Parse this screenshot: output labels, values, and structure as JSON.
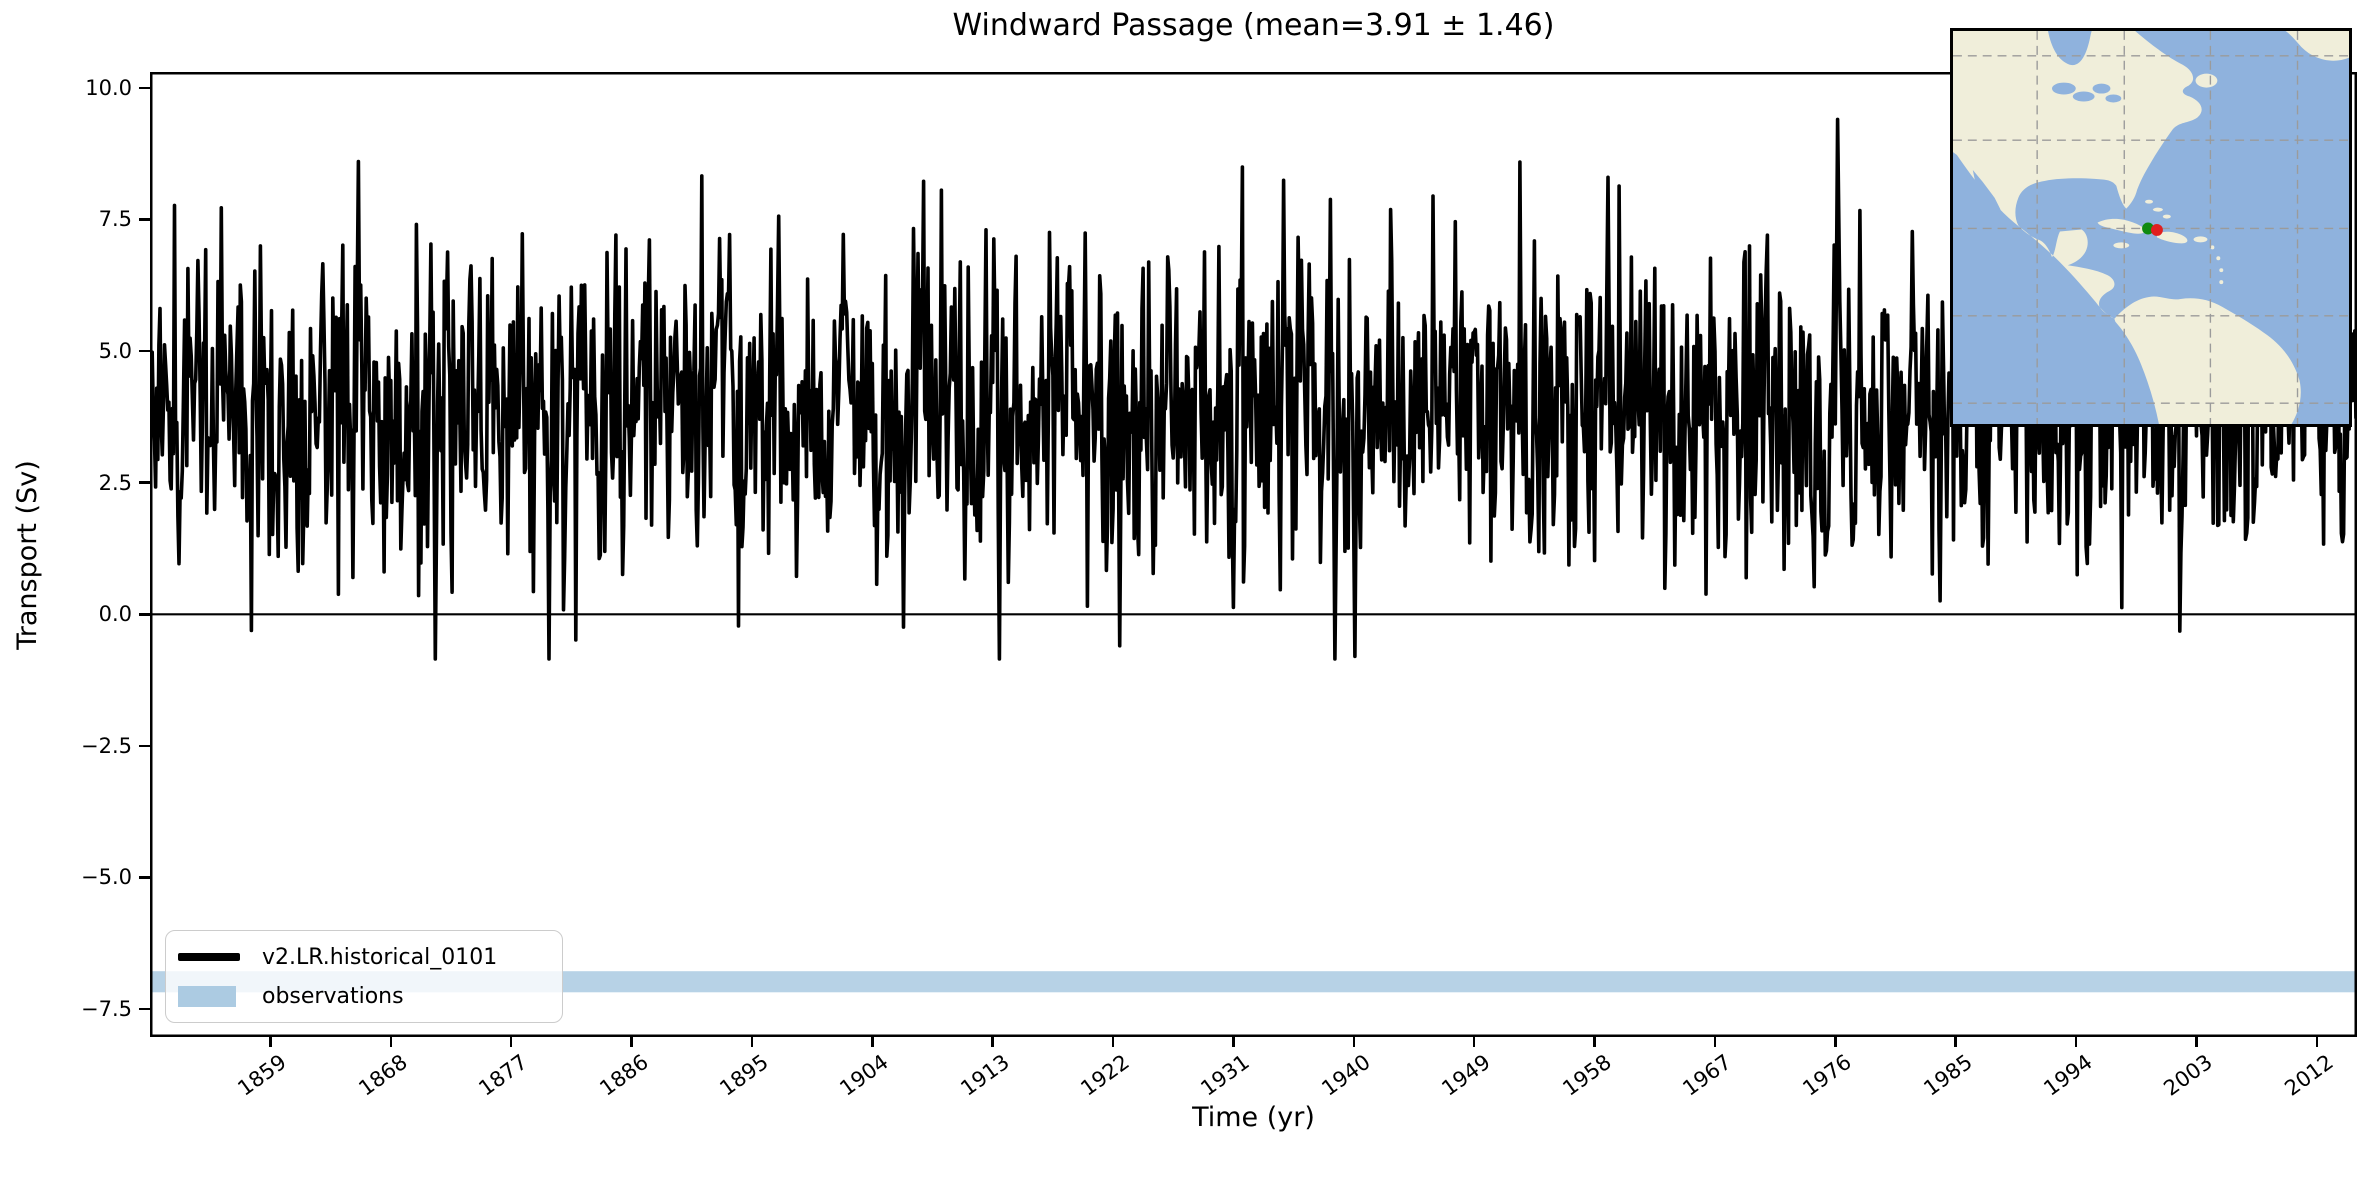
{
  "figure": {
    "background": "#ffffff"
  },
  "chart_data": {
    "type": "line",
    "title": "Windward Passage (mean=3.91 ± 1.46)",
    "xlabel": "Time (yr)",
    "ylabel": "Transport (Sv)",
    "xlim": [
      1850,
      2015
    ],
    "ylim": [
      -8.03,
      10.3
    ],
    "xticks": [
      1859,
      1868,
      1877,
      1886,
      1895,
      1904,
      1913,
      1922,
      1931,
      1940,
      1949,
      1958,
      1967,
      1976,
      1985,
      1994,
      2003,
      2012
    ],
    "yticks": [
      {
        "value": 10.0,
        "label": "10.0"
      },
      {
        "value": 7.5,
        "label": "7.5"
      },
      {
        "value": 5.0,
        "label": "5.0"
      },
      {
        "value": 2.5,
        "label": "2.5"
      },
      {
        "value": 0.0,
        "label": "0.0"
      },
      {
        "value": -2.5,
        "label": "−2.5"
      },
      {
        "value": -5.0,
        "label": "−5.0"
      },
      {
        "value": -7.5,
        "label": "−7.5"
      }
    ],
    "grid": false,
    "zero_line": 0.0,
    "series": [
      {
        "name": "v2.LR.historical_0101",
        "kind": "line",
        "color": "#000000",
        "linewidth": 3.6,
        "stats": {
          "mean": 3.91,
          "std": 1.46,
          "approx_min": -0.85,
          "approx_max": 9.4
        },
        "synthetic_generation": {
          "seed": 19760215,
          "ar1": 0.2,
          "samples_per_year": 12,
          "start_year": 1850,
          "end_year": 2015
        },
        "anchor_points": [
          {
            "year": 1871.3,
            "value": -0.85
          },
          {
            "year": 1922.5,
            "value": -0.6
          },
          {
            "year": 1938.6,
            "value": -0.85
          },
          {
            "year": 1940.1,
            "value": -0.8
          },
          {
            "year": 1959.0,
            "value": 8.3
          },
          {
            "year": 1976.2,
            "value": 9.4
          }
        ]
      },
      {
        "name": "observations",
        "kind": "hband",
        "color": "#b7d2e6",
        "y_range": [
          -7.18,
          -6.78
        ]
      }
    ],
    "legend": {
      "location": "lower left",
      "items": [
        {
          "swatch": "line",
          "label": "v2.LR.historical_0101",
          "color": "#000000"
        },
        {
          "swatch": "patch",
          "label": "observations",
          "color": "#accbe2"
        }
      ]
    }
  },
  "inset_map": {
    "region": "Windward Passage location (Americas overview)",
    "ocean_color": "#8fb2dd",
    "land_color": "#f0eeda",
    "grid_color": "#9b9b9b",
    "border_color": "#000000",
    "markers": [
      {
        "name": "model-section-point",
        "color": "#0f8a10"
      },
      {
        "name": "observed-section-point",
        "color": "#e01f1f"
      }
    ]
  }
}
